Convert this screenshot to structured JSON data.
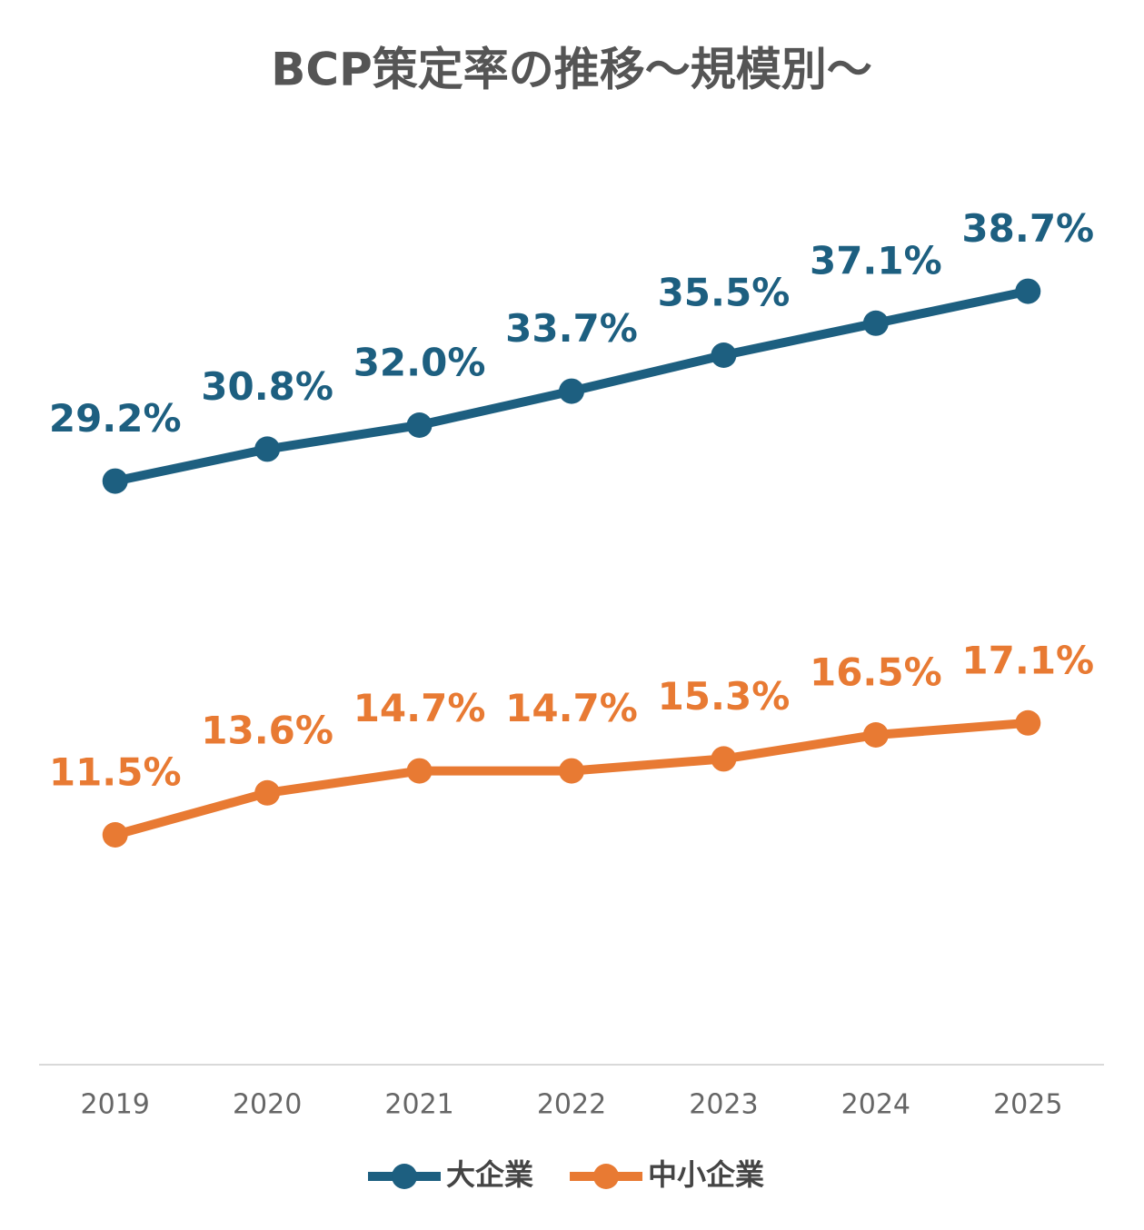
{
  "chart_data": {
    "type": "line",
    "title": "BCP策定率の推移～規模別～",
    "categories": [
      "2019",
      "2020",
      "2021",
      "2022",
      "2023",
      "2024",
      "2025"
    ],
    "series": [
      {
        "name": "大企業",
        "color": "#1d5f80",
        "values": [
          29.2,
          30.8,
          32.0,
          33.7,
          35.5,
          37.1,
          38.7
        ],
        "value_labels": [
          "29.2%",
          "30.8%",
          "32.0%",
          "33.7%",
          "35.5%",
          "37.1%",
          "38.7%"
        ]
      },
      {
        "name": "中小企業",
        "color": "#e87a33",
        "values": [
          11.5,
          13.6,
          14.7,
          14.7,
          15.3,
          16.5,
          17.1
        ],
        "value_labels": [
          "11.5%",
          "13.6%",
          "14.7%",
          "14.7%",
          "15.3%",
          "16.5%",
          "17.1%"
        ]
      }
    ],
    "ylim": [
      0,
      45
    ],
    "legend": "bottom"
  }
}
